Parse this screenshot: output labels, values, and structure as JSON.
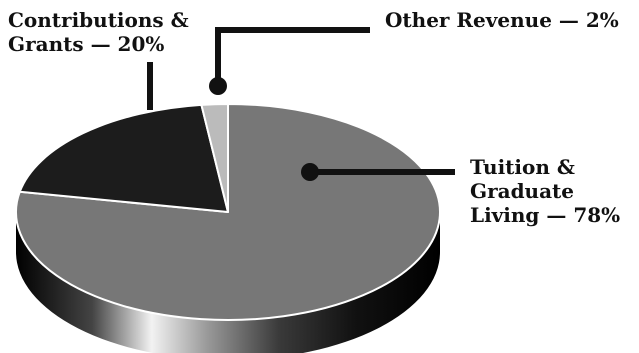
{
  "chart_data": {
    "type": "pie",
    "style": "3d",
    "slices": [
      {
        "label": "Tuition & Graduate Living",
        "value": 78,
        "display": "78%",
        "color": "#777777"
      },
      {
        "label": "Contributions & Grants",
        "value": 20,
        "display": "20%",
        "color": "#1c1c1c"
      },
      {
        "label": "Other Revenue",
        "value": 2,
        "display": "2%",
        "color": "#bbbbbb"
      }
    ],
    "labels": {
      "contributions": {
        "line1": "Contributions &",
        "line2": "Grants — 20%"
      },
      "other": {
        "line1": "Other Revenue — 2%"
      },
      "tuition": {
        "line1": "Tuition &",
        "line2": "Graduate",
        "line3": "Living — 78%"
      }
    }
  }
}
